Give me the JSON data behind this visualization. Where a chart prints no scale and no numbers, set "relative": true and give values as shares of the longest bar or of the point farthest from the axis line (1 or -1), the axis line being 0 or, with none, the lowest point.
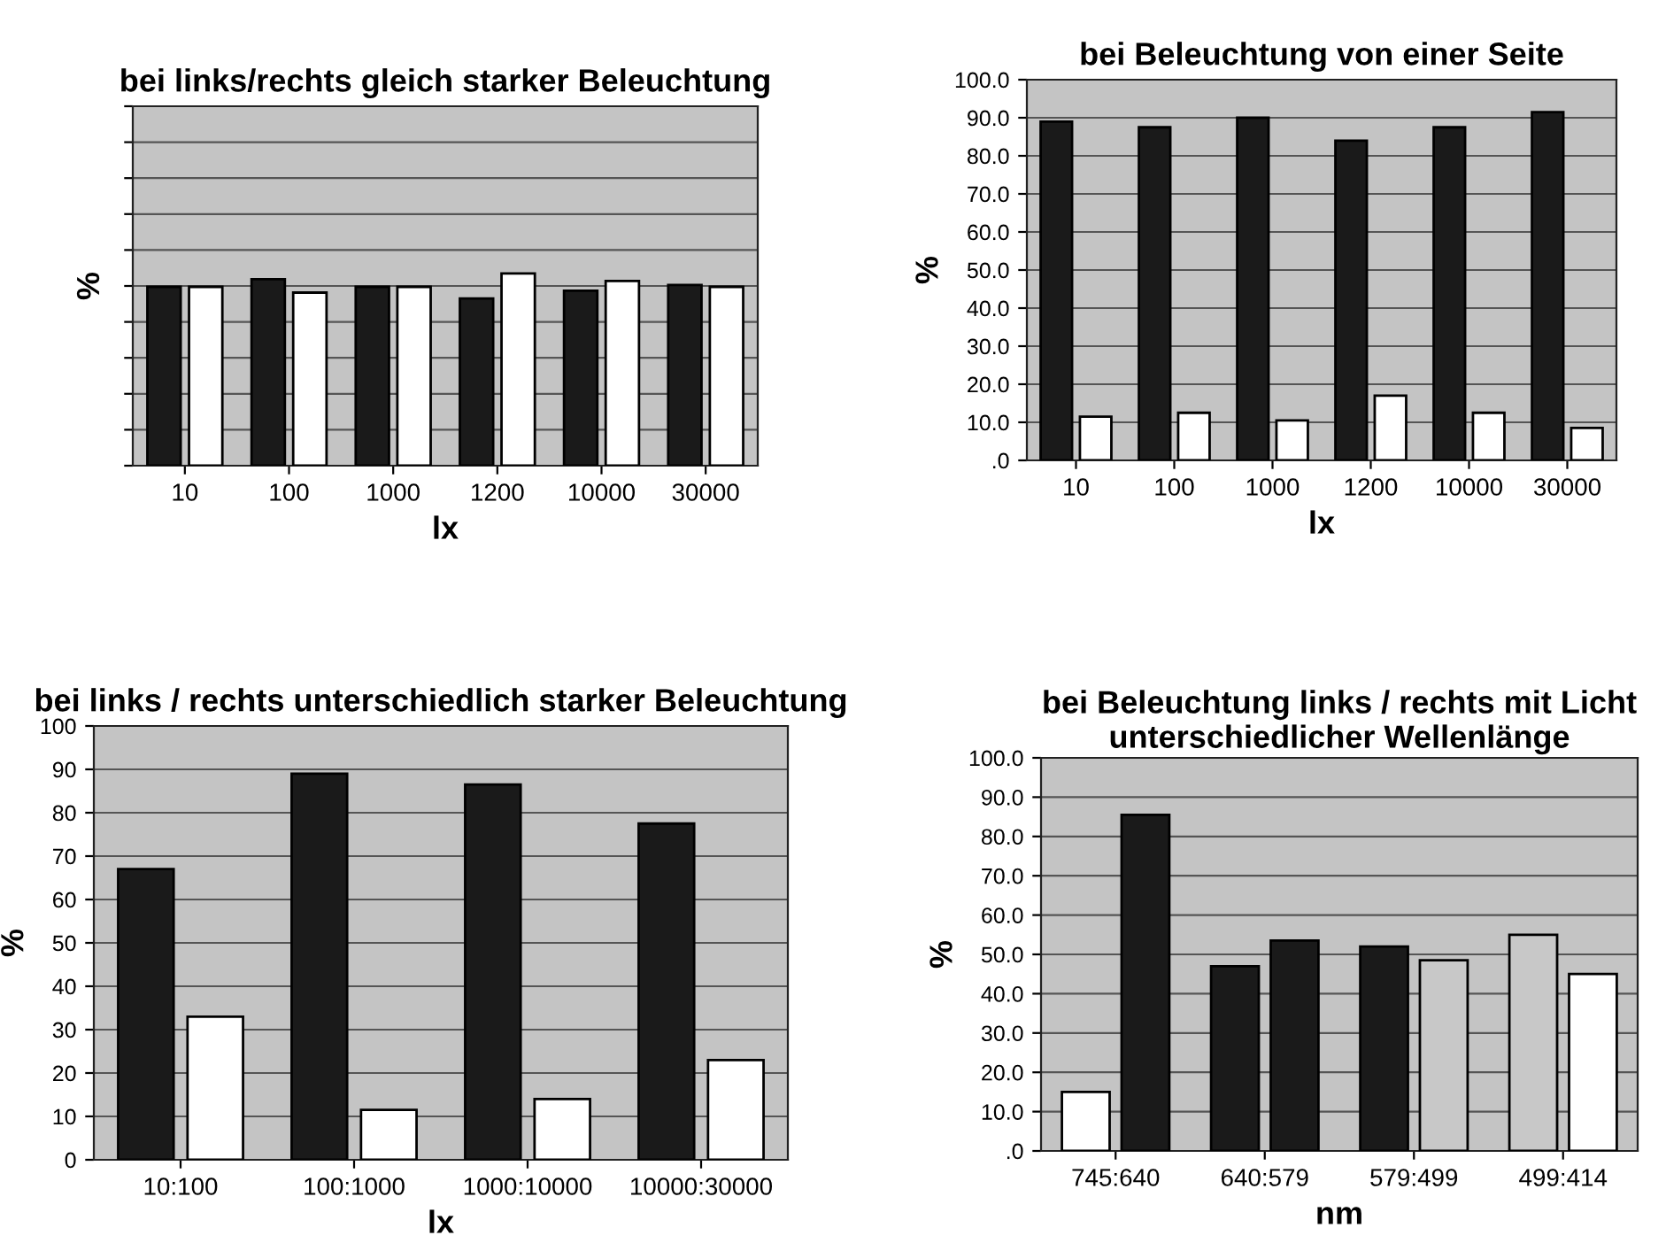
{
  "chart_data": [
    {
      "type": "bar",
      "title": "bei links/rechts gleich starker Beleuchtung",
      "xlabel": "lx",
      "ylabel": "%",
      "relative": true,
      "grid": "y",
      "categories": [
        "10",
        "100",
        "1000",
        "1200",
        "10000",
        "30000"
      ],
      "series": [
        {
          "color": "#1a1a1a",
          "values": [
            0.93,
            0.97,
            0.93,
            0.87,
            0.91,
            0.94
          ]
        },
        {
          "color": "#ffffff",
          "values": [
            0.93,
            0.9,
            0.93,
            1.0,
            0.96,
            0.93
          ]
        }
      ]
    },
    {
      "type": "bar",
      "title": "bei Beleuchtung von einer Seite",
      "xlabel": "lx",
      "ylabel": "%",
      "grid": "y",
      "categories": [
        "10",
        "100",
        "1000",
        "1200",
        "10000",
        "30000"
      ],
      "ylim": [
        0,
        100
      ],
      "yticks": [
        {
          "value": 0,
          "label": ".0"
        },
        {
          "value": 10,
          "label": "10.0"
        },
        {
          "value": 20,
          "label": "20.0"
        },
        {
          "value": 30,
          "label": "30.0"
        },
        {
          "value": 40,
          "label": "40.0"
        },
        {
          "value": 50,
          "label": "50.0"
        },
        {
          "value": 60,
          "label": "60.0"
        },
        {
          "value": 70,
          "label": "70.0"
        },
        {
          "value": 80,
          "label": "80.0"
        },
        {
          "value": 90,
          "label": "90.0"
        },
        {
          "value": 100,
          "label": "100.0"
        }
      ],
      "series": [
        {
          "color": "#1a1a1a",
          "values": [
            89,
            87.5,
            90,
            84,
            87.5,
            91.5
          ]
        },
        {
          "color": "#ffffff",
          "values": [
            11.5,
            12.5,
            10.5,
            17,
            12.5,
            8.5
          ]
        }
      ]
    },
    {
      "type": "bar",
      "title": "bei links / rechts unterschiedlich starker Beleuchtung",
      "xlabel": "lx",
      "ylabel": "%",
      "grid": "y",
      "categories": [
        "10:100",
        "100:1000",
        "1000:10000",
        "10000:30000"
      ],
      "ylim": [
        0,
        100
      ],
      "yticks": [
        0,
        10,
        20,
        30,
        40,
        50,
        60,
        70,
        80,
        90,
        100
      ],
      "series": [
        {
          "color": "#1a1a1a",
          "values": [
            67,
            89,
            86.5,
            77.5
          ]
        },
        {
          "color": "#ffffff",
          "values": [
            33,
            11.5,
            14,
            23
          ]
        }
      ]
    },
    {
      "type": "bar",
      "title": "bei Beleuchtung links / rechts mit Licht unterschiedlicher Wellenlänge",
      "xlabel": "nm",
      "ylabel": "%",
      "grid": "y",
      "categories": [
        "745:640",
        "640:579",
        "579:499",
        "499:414"
      ],
      "ylim": [
        0,
        100
      ],
      "yticks": [
        {
          "value": 0,
          "label": ".0"
        },
        {
          "value": 10,
          "label": "10.0"
        },
        {
          "value": 20,
          "label": "20.0"
        },
        {
          "value": 30,
          "label": "30.0"
        },
        {
          "value": 40,
          "label": "40.0"
        },
        {
          "value": 50,
          "label": "50.0"
        },
        {
          "value": 60,
          "label": "60.0"
        },
        {
          "value": 70,
          "label": "70.0"
        },
        {
          "value": 80,
          "label": "80.0"
        },
        {
          "value": 90,
          "label": "90.0"
        },
        {
          "value": 100,
          "label": "100.0"
        }
      ],
      "series": [
        {
          "colors": [
            "#ffffff",
            "#1a1a1a",
            "#1a1a1a",
            "#c8c8c8"
          ],
          "values": [
            15,
            47,
            52,
            55
          ]
        },
        {
          "colors": [
            "#1a1a1a",
            "#1a1a1a",
            "#c8c8c8",
            "#ffffff"
          ],
          "values": [
            85.5,
            53.5,
            48.5,
            45
          ]
        }
      ]
    }
  ]
}
